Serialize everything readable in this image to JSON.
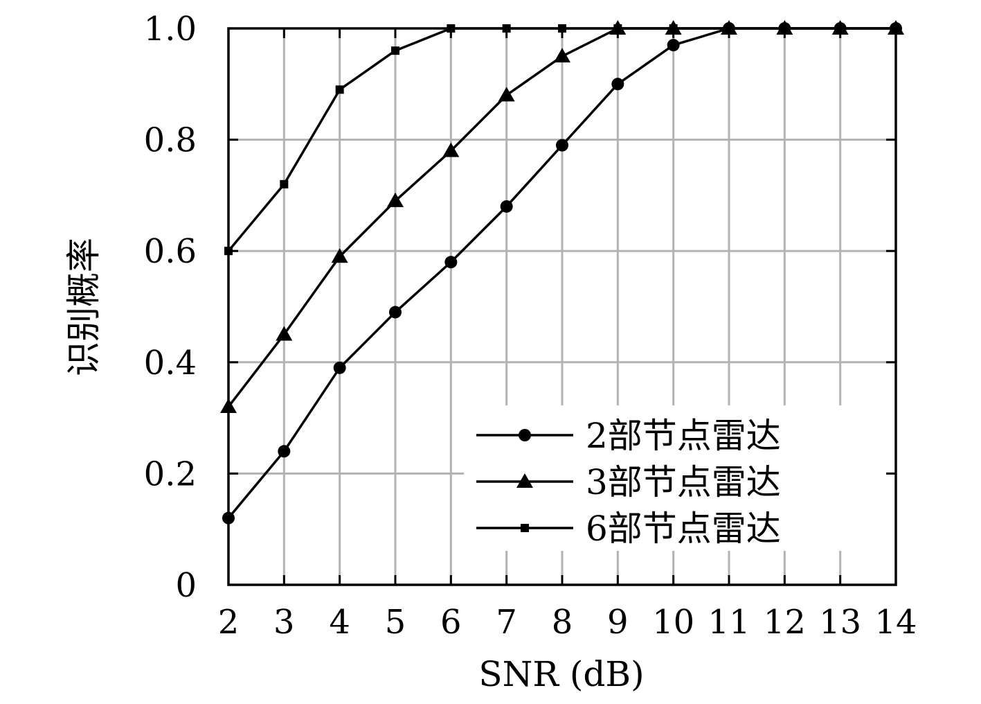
{
  "chart_data": {
    "type": "line",
    "title": "",
    "xlabel": "SNR (dB)",
    "ylabel": "识别概率",
    "xlim": [
      2,
      14
    ],
    "ylim": [
      0,
      1.0
    ],
    "x_ticks": [
      2,
      3,
      4,
      5,
      6,
      7,
      8,
      9,
      10,
      11,
      12,
      13,
      14
    ],
    "y_ticks": [
      0,
      0.2,
      0.4,
      0.6,
      0.8,
      1.0
    ],
    "x_tick_labels": [
      "2",
      "3",
      "4",
      "5",
      "6",
      "7",
      "8",
      "9",
      "10",
      "11",
      "12",
      "13",
      "14"
    ],
    "y_tick_labels": [
      "0",
      "0.2",
      "0.4",
      "0.6",
      "0.8",
      "1.0"
    ],
    "grid": true,
    "legend_position": "bottom-right",
    "x": [
      2,
      3,
      4,
      5,
      6,
      7,
      8,
      9,
      10,
      11,
      12,
      13,
      14
    ],
    "series": [
      {
        "name": "2部节点雷达",
        "marker": "circle",
        "values": [
          0.12,
          0.24,
          0.39,
          0.49,
          0.58,
          0.68,
          0.79,
          0.9,
          0.97,
          1.0,
          1.0,
          1.0,
          1.0
        ]
      },
      {
        "name": "3部节点雷达",
        "marker": "triangle",
        "values": [
          0.32,
          0.45,
          0.59,
          0.69,
          0.78,
          0.88,
          0.95,
          1.0,
          1.0,
          1.0,
          1.0,
          1.0,
          1.0
        ]
      },
      {
        "name": "6部节点雷达",
        "marker": "square",
        "values": [
          0.6,
          0.72,
          0.89,
          0.96,
          1.0,
          1.0,
          1.0,
          1.0,
          1.0,
          1.0,
          1.0,
          1.0,
          1.0
        ]
      }
    ],
    "colors": {
      "line": "#000000",
      "grid": "#b3b3b3",
      "frame": "#000000"
    }
  }
}
